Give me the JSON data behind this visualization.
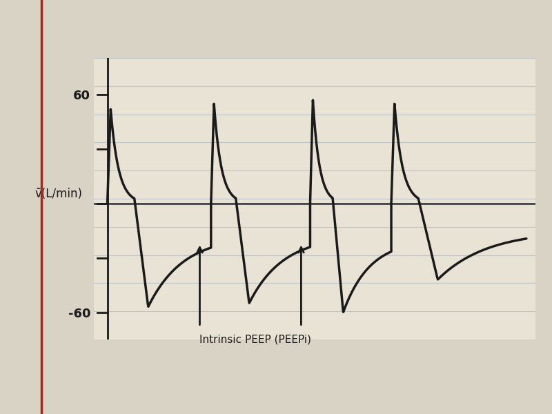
{
  "ylabel": "ṽ(L/min)",
  "ylim": [
    -75,
    80
  ],
  "ytick_positions": [
    -60,
    -30,
    0,
    30,
    60
  ],
  "yticklabels": [
    "-60",
    "",
    "",
    "",
    "60"
  ],
  "background_color": "#d8d3c5",
  "paper_color": "#e8e3d5",
  "line_color": "#1a1a1a",
  "annotation_text": "Intrinsic PEEP (PEEPi)",
  "annotation_color": "#1a1a1a",
  "line_width": 2.5,
  "ruled_line_color": "#9aaabb",
  "ruled_line_alpha": 0.55,
  "red_margin_color": "#bb2211",
  "axis_x_position": 0.0,
  "xlim": [
    -0.3,
    9.5
  ]
}
